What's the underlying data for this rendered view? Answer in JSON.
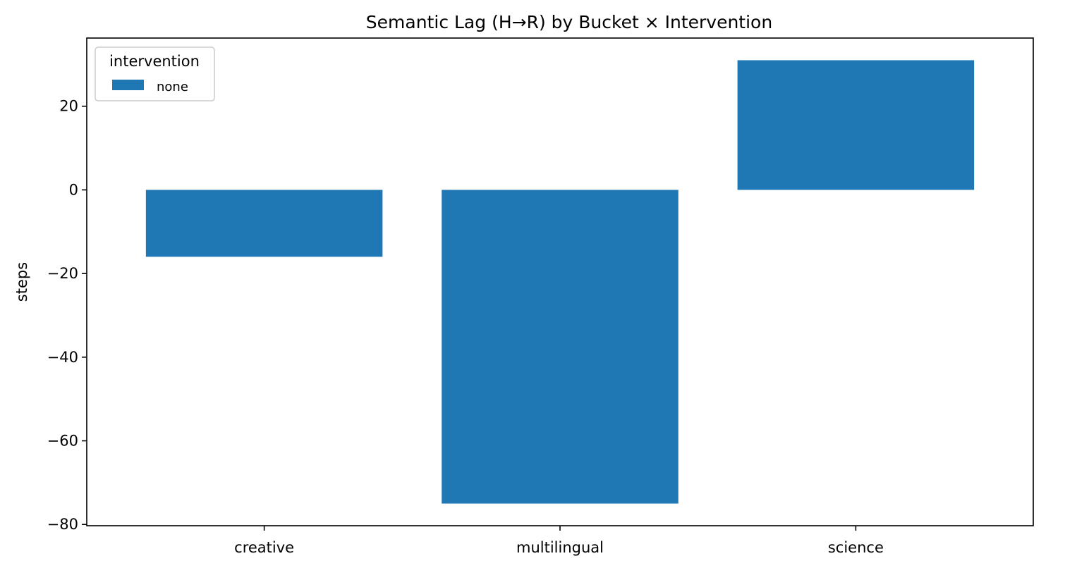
{
  "chart_data": {
    "type": "bar",
    "title": "Semantic Lag (H→R) by Bucket × Intervention",
    "xlabel": "",
    "ylabel": "steps",
    "categories": [
      "creative",
      "multilingual",
      "science"
    ],
    "series": [
      {
        "name": "none",
        "values": [
          -16,
          -75,
          31
        ],
        "color": "#1f77b4"
      }
    ],
    "ylim": [
      -80.3,
      36.3
    ],
    "yticks": [
      20,
      0,
      -20,
      -40,
      -60,
      -80
    ],
    "ytick_labels": [
      "20",
      "0",
      "−20",
      "−40",
      "−60",
      "−80"
    ],
    "legend": {
      "title": "intervention",
      "placement": "top-left"
    },
    "grid": false
  }
}
